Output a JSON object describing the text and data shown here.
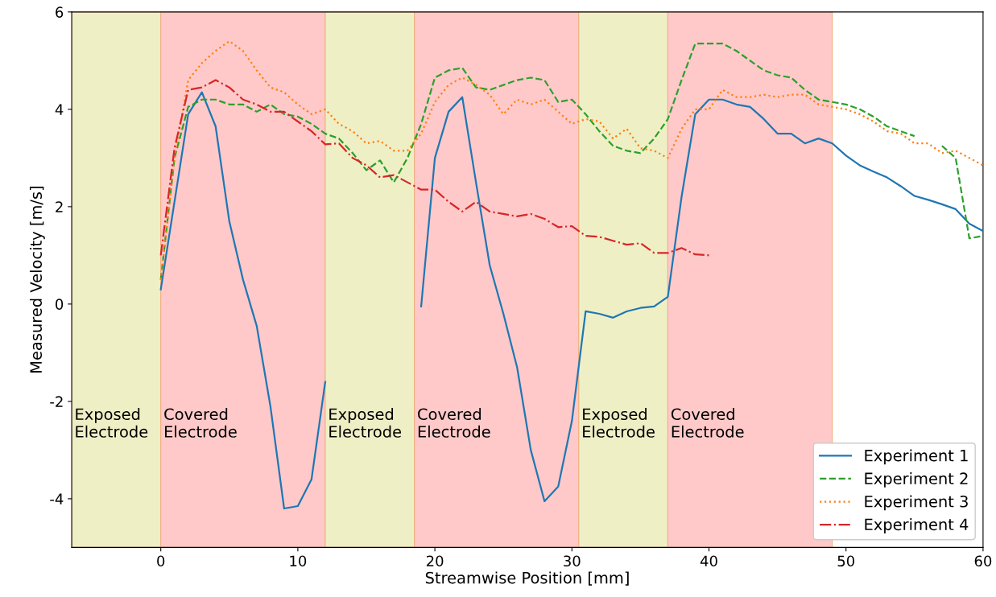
{
  "chart_data": {
    "type": "line",
    "xlabel": "Streamwise Position [mm]",
    "ylabel": "Measured Velocity [m/s]",
    "xlim": [
      -6.5,
      60
    ],
    "ylim": [
      -5,
      6
    ],
    "xticks": [
      0,
      10,
      20,
      30,
      40,
      50,
      60
    ],
    "yticks": [
      -4,
      -2,
      0,
      2,
      4,
      6
    ],
    "grid": false,
    "legend": "bottom right",
    "bands": [
      {
        "axis": "x",
        "from": -6.5,
        "to": 0,
        "label": "Exposed\nElectrode",
        "color": "#efefc6"
      },
      {
        "axis": "x",
        "from": 0,
        "to": 12,
        "label": "Covered\nElectrode",
        "color": "#ffc9c9"
      },
      {
        "axis": "x",
        "from": 12,
        "to": 18.5,
        "label": "Exposed\nElectrode",
        "color": "#efefc6"
      },
      {
        "axis": "x",
        "from": 18.5,
        "to": 30.5,
        "label": "Covered\nElectrode",
        "color": "#ffc9c9"
      },
      {
        "axis": "x",
        "from": 30.5,
        "to": 37,
        "label": "Exposed\nElectrode",
        "color": "#efefc6"
      },
      {
        "axis": "x",
        "from": 37,
        "to": 49,
        "label": "Covered\nElectrode",
        "color": "#ffc9c9"
      }
    ],
    "series": [
      {
        "name": "Experiment 1",
        "color": "#1f77b4",
        "line_style": "solid",
        "x": [
          0,
          2,
          3,
          4,
          5,
          6,
          7,
          8,
          9,
          10,
          11,
          12,
          13,
          19,
          20,
          21,
          22,
          23,
          24,
          25,
          26,
          27,
          28,
          29,
          30,
          31,
          32,
          33,
          34,
          35,
          36,
          37,
          38,
          39,
          40,
          41,
          42,
          43,
          44,
          45,
          46,
          47,
          48,
          49,
          50,
          51,
          52,
          53,
          54,
          55,
          56,
          57,
          58,
          59,
          60
        ],
        "values": [
          0.3,
          3.9,
          4.35,
          3.65,
          1.7,
          0.5,
          -0.45,
          -2.1,
          -4.2,
          -4.15,
          -3.6,
          -1.6,
          null,
          -0.05,
          3.0,
          3.95,
          4.25,
          2.5,
          0.8,
          -0.2,
          -1.3,
          -3.0,
          -4.05,
          -3.75,
          -2.4,
          -0.15,
          -0.2,
          -0.28,
          -0.15,
          -0.08,
          -0.05,
          0.15,
          2.2,
          3.9,
          4.2,
          4.2,
          4.1,
          4.05,
          3.8,
          3.5,
          3.5,
          3.3,
          3.4,
          3.3,
          3.05,
          2.85,
          2.72,
          2.6,
          2.42,
          2.22,
          2.14,
          2.05,
          1.95,
          1.65,
          1.5
        ]
      },
      {
        "name": "Experiment 2",
        "color": "#2ca02c",
        "line_style": "dashed",
        "x": [
          0,
          1,
          2,
          3,
          4,
          5,
          6,
          7,
          8,
          9,
          10,
          11,
          12,
          13,
          14,
          15,
          16,
          17,
          18,
          19,
          20,
          21,
          22,
          23,
          24,
          25,
          26,
          27,
          28,
          29,
          30,
          31,
          32,
          33,
          34,
          35,
          36,
          37,
          38,
          39,
          40,
          41,
          42,
          43,
          44,
          45,
          46,
          47,
          48,
          49,
          50,
          51,
          52,
          53,
          54,
          55,
          56,
          57,
          58,
          59,
          60
        ],
        "values": [
          0.5,
          3.0,
          4.05,
          4.2,
          4.2,
          4.1,
          4.1,
          3.95,
          4.1,
          3.9,
          3.85,
          3.7,
          3.5,
          3.4,
          3.1,
          2.75,
          2.95,
          2.5,
          3.0,
          3.7,
          4.65,
          4.8,
          4.85,
          4.45,
          4.4,
          4.5,
          4.6,
          4.65,
          4.6,
          4.15,
          4.2,
          3.9,
          3.55,
          3.25,
          3.15,
          3.1,
          3.4,
          3.8,
          4.6,
          5.35,
          5.35,
          5.35,
          5.2,
          5.0,
          4.8,
          4.7,
          4.65,
          4.4,
          4.2,
          4.15,
          4.1,
          4.0,
          3.85,
          3.65,
          3.55,
          3.45,
          null,
          3.25,
          3.0,
          1.35,
          1.4
        ]
      },
      {
        "name": "Experiment 3",
        "color": "#ff7f0e",
        "line_style": "dotted",
        "x": [
          0,
          1,
          2,
          3,
          4,
          5,
          6,
          7,
          8,
          9,
          10,
          11,
          12,
          13,
          14,
          15,
          16,
          17,
          18,
          19,
          20,
          21,
          22,
          23,
          24,
          25,
          26,
          27,
          28,
          29,
          30,
          31,
          32,
          33,
          34,
          35,
          36,
          37,
          38,
          39,
          40,
          41,
          42,
          43,
          44,
          45,
          46,
          47,
          48,
          49,
          50,
          51,
          52,
          53,
          54,
          55,
          56,
          57,
          58,
          59,
          60
        ],
        "values": [
          0.5,
          3.0,
          4.6,
          4.95,
          5.2,
          5.4,
          5.2,
          4.8,
          4.45,
          4.35,
          4.1,
          3.9,
          4.0,
          3.7,
          3.55,
          3.3,
          3.35,
          3.15,
          3.15,
          3.5,
          4.15,
          4.5,
          4.65,
          4.5,
          4.3,
          3.9,
          4.2,
          4.1,
          4.2,
          3.95,
          3.7,
          3.8,
          3.75,
          3.4,
          3.6,
          3.2,
          3.15,
          3.0,
          3.6,
          4.0,
          4.0,
          4.4,
          4.25,
          4.25,
          4.3,
          4.25,
          4.3,
          4.3,
          4.1,
          4.05,
          4.0,
          3.9,
          3.75,
          3.55,
          3.5,
          3.3,
          3.3,
          3.1,
          3.15,
          3.0,
          2.85
        ]
      },
      {
        "name": "Experiment 4",
        "color": "#d62728",
        "line_style": "dashdot",
        "x": [
          0,
          1,
          2,
          3,
          4,
          5,
          6,
          7,
          8,
          9,
          10,
          11,
          12,
          13,
          14,
          15,
          16,
          17,
          18,
          19,
          20,
          21,
          22,
          23,
          24,
          25,
          26,
          27,
          28,
          29,
          30,
          31,
          32,
          33,
          34,
          35,
          36,
          37,
          38,
          39,
          40
        ],
        "values": [
          1.0,
          3.2,
          4.4,
          4.45,
          4.6,
          4.45,
          4.2,
          4.1,
          3.95,
          3.95,
          3.75,
          3.55,
          3.28,
          3.3,
          3.0,
          2.85,
          2.6,
          2.65,
          2.5,
          2.35,
          2.35,
          2.1,
          1.9,
          2.1,
          1.9,
          1.85,
          1.8,
          1.85,
          1.75,
          1.58,
          1.6,
          1.4,
          1.38,
          1.3,
          1.22,
          1.25,
          1.05,
          1.05,
          1.15,
          1.02,
          1.0
        ]
      }
    ]
  }
}
